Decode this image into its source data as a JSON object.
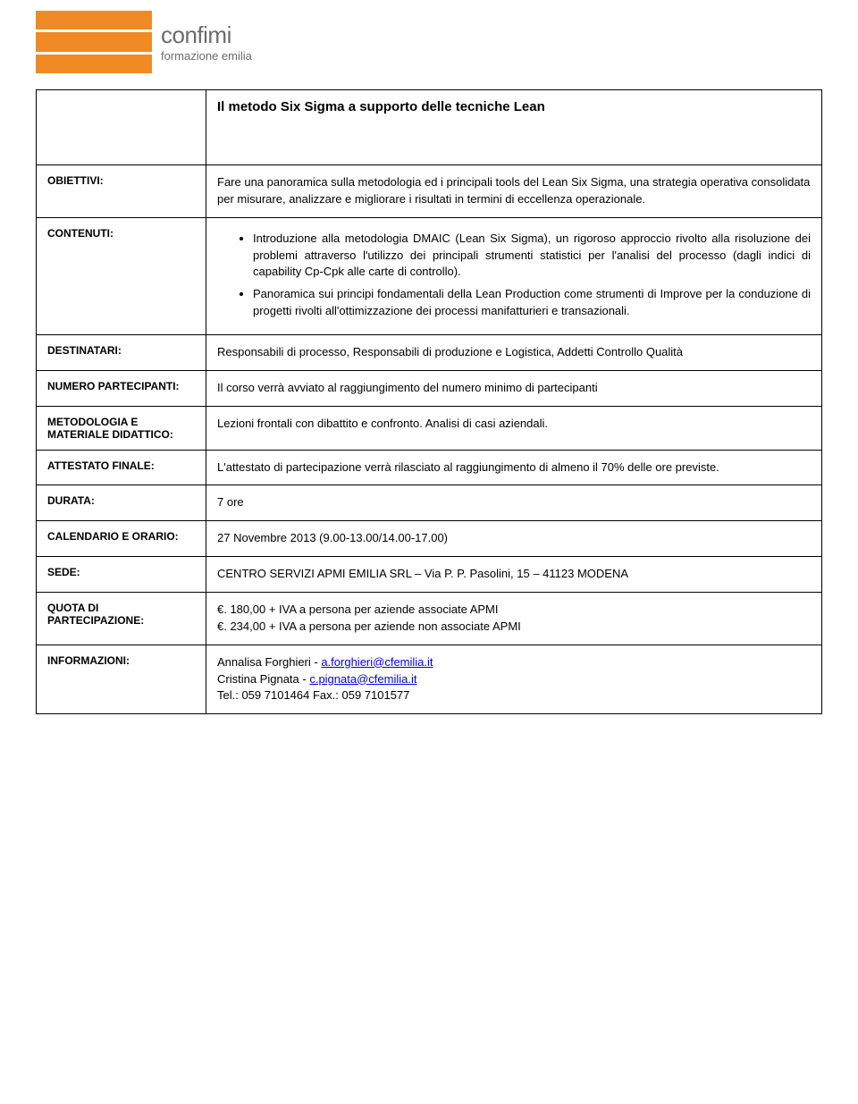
{
  "colors": {
    "orange": "#f08a24",
    "logo_text": "#6b6b6b",
    "border": "#000000",
    "link": "#0000ee",
    "background": "#ffffff"
  },
  "logo": {
    "brand": "confimi",
    "tagline": "formazione emilia"
  },
  "title": "Il metodo Six Sigma a supporto delle tecniche Lean",
  "labels": {
    "obiettivi": "OBIETTIVI:",
    "contenuti": "CONTENUTI:",
    "destinatari": "DESTINATARI:",
    "numero": "NUMERO PARTECIPANTI:",
    "metodologia": "METODOLOGIA E MATERIALE DIDATTICO:",
    "attestato": "ATTESTATO FINALE:",
    "durata": "DURATA:",
    "calendario": "CALENDARIO E ORARIO:",
    "sede": "SEDE:",
    "quota": "QUOTA DI PARTECIPAZIONE:",
    "informazioni": "INFORMAZIONI:"
  },
  "obiettivi": "Fare una panoramica sulla metodologia ed i principali tools del Lean Six Sigma, una strategia operativa consolidata per misurare, analizzare e migliorare i risultati in termini di eccellenza operazionale.",
  "contenuti": {
    "items": [
      "Introduzione alla metodologia DMAIC (Lean Six Sigma), un rigoroso approccio rivolto alla risoluzione dei problemi attraverso l'utilizzo dei principali strumenti statistici per l'analisi del processo (dagli indici di capability Cp-Cpk alle carte di controllo).",
      "Panoramica sui principi fondamentali della Lean Production come strumenti di Improve per la conduzione di progetti rivolti all'ottimizzazione dei processi manifatturieri e transazionali."
    ]
  },
  "destinatari": "Responsabili di processo, Responsabili di produzione e Logistica, Addetti Controllo Qualità",
  "numero": "Il corso verrà avviato al raggiungimento del numero minimo di partecipanti",
  "metodologia": "Lezioni frontali con dibattito e confronto. Analisi di casi aziendali.",
  "attestato": "L'attestato di partecipazione verrà rilasciato al raggiungimento di almeno il 70% delle ore previste.",
  "durata": "7 ore",
  "calendario": "27 Novembre 2013 (9.00-13.00/14.00-17.00)",
  "sede": "CENTRO SERVIZI APMI EMILIA SRL – Via P. P. Pasolini, 15 – 41123 MODENA",
  "quota": {
    "line1": "€. 180,00 + IVA  a persona per aziende associate APMI",
    "line2": "€. 234,00 + IVA  a persona per aziende non associate APMI"
  },
  "informazioni": {
    "p1_prefix": "Annalisa Forghieri - ",
    "p1_link": "a.forghieri@cfemilia.it",
    "p2_prefix": "Cristina Pignata - ",
    "p2_link": "c.pignata@cfemilia.it",
    "tel": "Tel.: 059 7101464 Fax.: 059 7101577"
  }
}
